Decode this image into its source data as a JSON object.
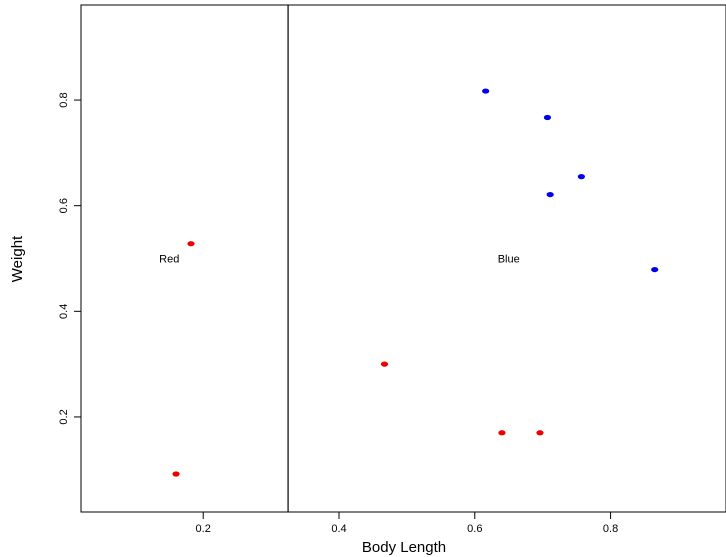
{
  "chart_data": {
    "type": "scatter",
    "title": "",
    "xlabel": "Body Length",
    "ylabel": "Weight",
    "xlim": [
      0.02,
      0.97
    ],
    "ylim": [
      0.02,
      0.98
    ],
    "x_ticks": [
      0.2,
      0.4,
      0.6,
      0.8
    ],
    "y_ticks": [
      0.2,
      0.4,
      0.6,
      0.8
    ],
    "x_tick_labels": [
      "0.2",
      "0.4",
      "0.6",
      "0.8"
    ],
    "y_tick_labels": [
      "0.2",
      "0.4",
      "0.6",
      "0.8"
    ],
    "grid": false,
    "legend": "none",
    "split_line": {
      "orientation": "vertical",
      "x": 0.325
    },
    "region_labels": [
      {
        "text": "Red",
        "x": 0.15,
        "y": 0.5
      },
      {
        "text": "Blue",
        "x": 0.65,
        "y": 0.5
      }
    ],
    "colors": {
      "red": "#ee0000",
      "blue": "#0000ee",
      "line": "#000000"
    },
    "series": [
      {
        "color": "#ee0000",
        "points": [
          {
            "x": 0.182,
            "y": 0.528
          },
          {
            "x": 0.16,
            "y": 0.092
          },
          {
            "x": 0.467,
            "y": 0.3
          },
          {
            "x": 0.64,
            "y": 0.17
          },
          {
            "x": 0.696,
            "y": 0.17
          }
        ]
      },
      {
        "color": "#0000ee",
        "points": [
          {
            "x": 0.616,
            "y": 0.817
          },
          {
            "x": 0.707,
            "y": 0.767
          },
          {
            "x": 0.757,
            "y": 0.655
          },
          {
            "x": 0.711,
            "y": 0.621
          },
          {
            "x": 0.865,
            "y": 0.479
          }
        ]
      }
    ]
  }
}
